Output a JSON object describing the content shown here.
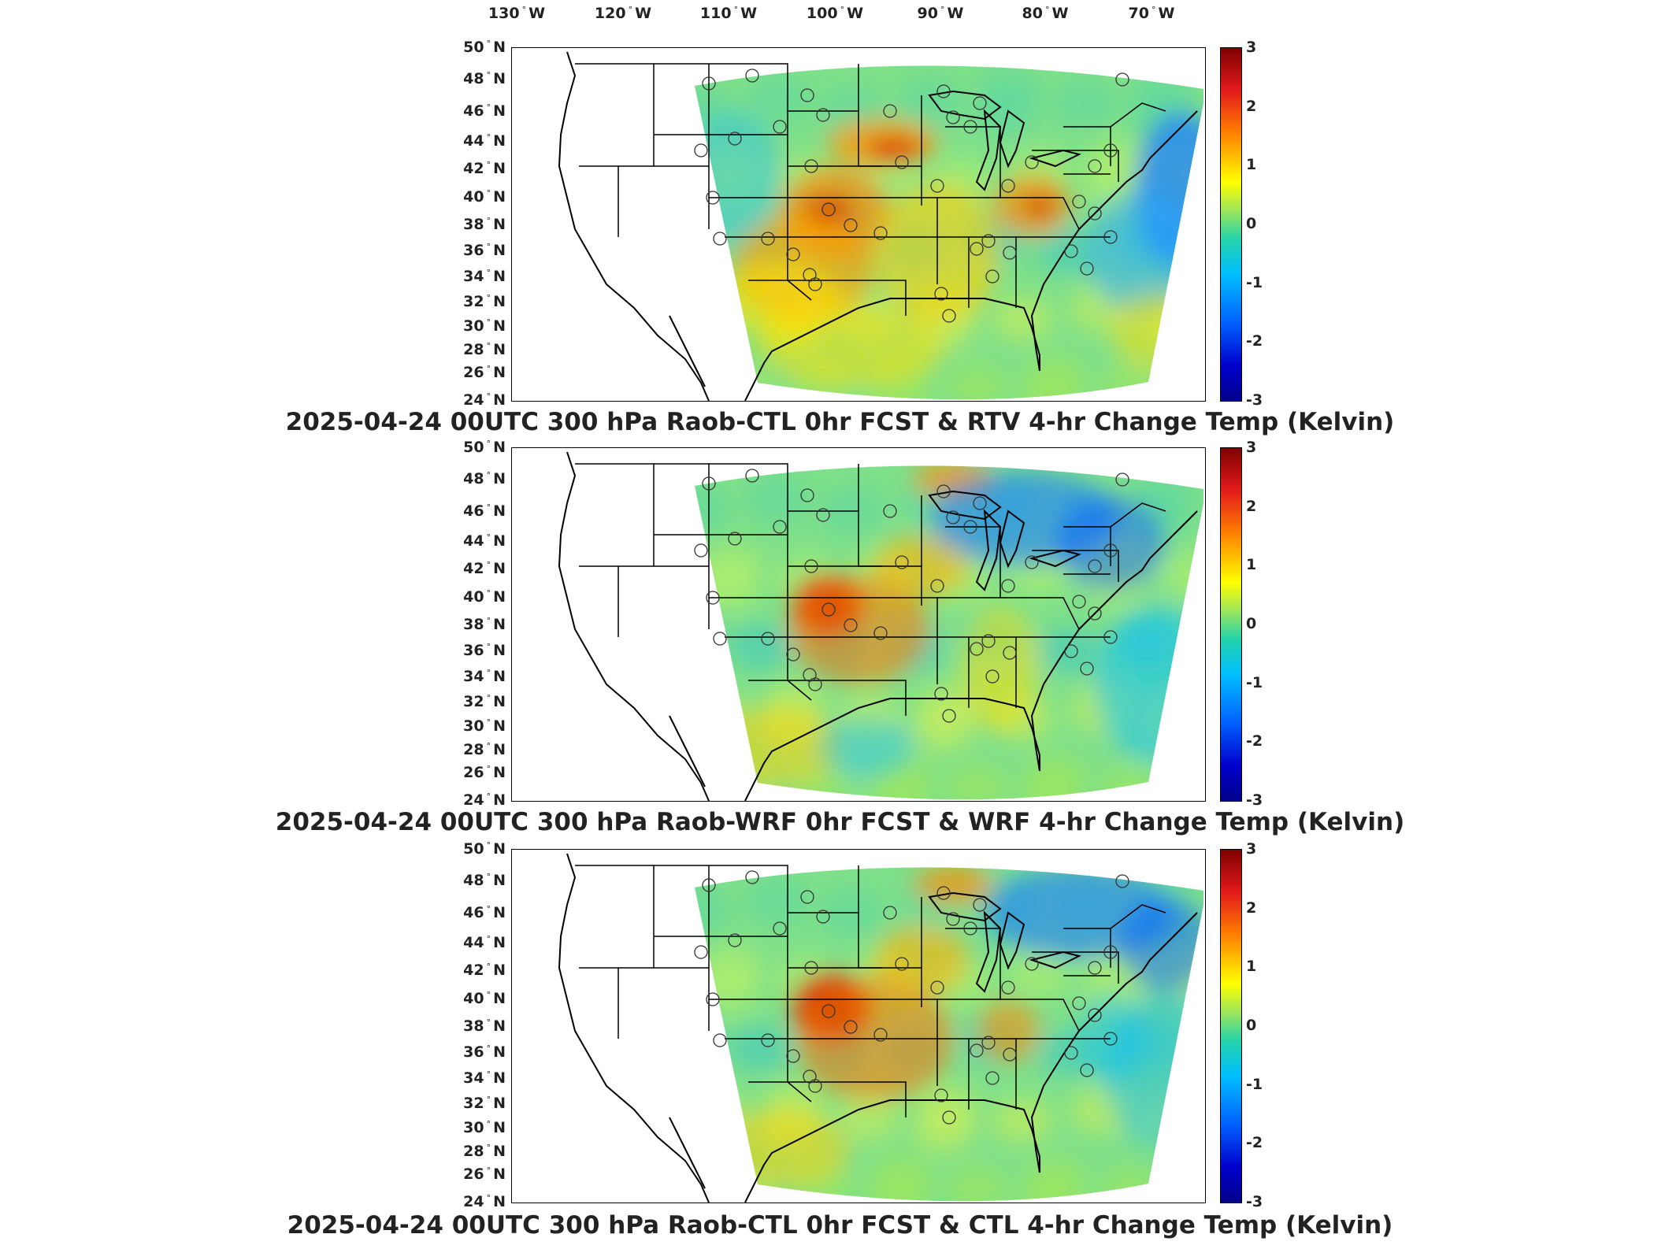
{
  "lon_labels": [
    "130° W",
    "120° W",
    "110° W",
    "100° W",
    "90° W",
    "80° W",
    "70° W"
  ],
  "lat_labels": [
    "50° N",
    "48° N",
    "46° N",
    "44° N",
    "42° N",
    "40° N",
    "38° N",
    "36° N",
    "34° N",
    "32° N",
    "30° N",
    "28° N",
    "26° N",
    "24° N"
  ],
  "colorbar_ticks": [
    "3",
    "2",
    "1",
    "0",
    "-1",
    "-2",
    "-3"
  ],
  "colorbar": {
    "min": -3,
    "max": 3,
    "colors": [
      "#00008b",
      "#0000cc",
      "#0060ff",
      "#00bfff",
      "#25d3a9",
      "#9ee65a",
      "#ffff00",
      "#ff7f00",
      "#e31a1c",
      "#7f0000"
    ]
  },
  "panels": [
    {
      "title": "2025-04-24 00UTC 300 hPa Raob-CTL 0hr FCST & RTV 4-hr Change Temp (Kelvin)",
      "variant": "rtv"
    },
    {
      "title": "2025-04-24 00UTC 300 hPa Raob-WRF 0hr FCST & WRF 4-hr Change Temp (Kelvin)",
      "variant": "wrf"
    },
    {
      "title": "2025-04-24 00UTC 300 hPa Raob-CTL 0hr FCST & CTL 4-hr Change Temp (Kelvin)",
      "variant": "ctl"
    }
  ]
}
